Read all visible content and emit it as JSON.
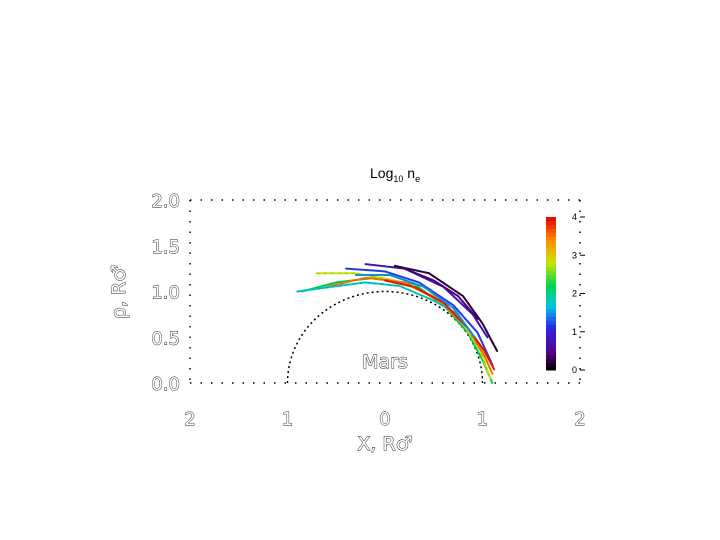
{
  "title": {
    "main": "Log",
    "sub": "10",
    "var": "n",
    "var_sub": "e"
  },
  "chart_data": {
    "type": "line",
    "xlabel": "X, R♂",
    "ylabel": "ρ, R♂",
    "xlim": [
      -2,
      2
    ],
    "ylim": [
      0,
      2
    ],
    "x_ticks": [
      "2",
      "1",
      "0",
      "1",
      "2"
    ],
    "y_ticks": [
      "0.0",
      "0.5",
      "1.0",
      "1.5",
      "2.0"
    ],
    "planet_label": "Mars",
    "planet_radius": 1.0,
    "colorbar": {
      "range": [
        0,
        4
      ],
      "ticks": [
        "0",
        "1",
        "2",
        "3",
        "4"
      ],
      "colormap": "rainbow"
    },
    "series": [
      {
        "x": [
          -0.85,
          -0.5,
          -0.1,
          0.3,
          0.6,
          0.85,
          1.0,
          1.1
        ],
        "y": [
          1.0,
          1.1,
          1.15,
          1.08,
          0.85,
          0.55,
          0.25,
          0.0
        ],
        "level": 2.2
      },
      {
        "x": [
          -0.7,
          -0.3,
          0.1,
          0.5,
          0.8,
          0.98,
          1.08
        ],
        "y": [
          1.2,
          1.2,
          1.12,
          0.95,
          0.65,
          0.35,
          0.05
        ],
        "level": 2.8
      },
      {
        "x": [
          -0.6,
          -0.2,
          0.2,
          0.55,
          0.85,
          1.02,
          1.1
        ],
        "y": [
          1.05,
          1.15,
          1.1,
          0.9,
          0.6,
          0.3,
          0.1
        ],
        "level": 3.5
      },
      {
        "x": [
          -0.4,
          0.0,
          0.35,
          0.7,
          0.95,
          1.1
        ],
        "y": [
          1.25,
          1.22,
          1.1,
          0.85,
          0.55,
          0.2
        ],
        "level": 1.2
      },
      {
        "x": [
          -0.2,
          0.2,
          0.6,
          0.9,
          1.05
        ],
        "y": [
          1.3,
          1.25,
          1.05,
          0.75,
          0.5
        ],
        "level": 0.8
      },
      {
        "x": [
          0.1,
          0.45,
          0.8,
          1.0,
          1.15
        ],
        "y": [
          1.28,
          1.2,
          0.95,
          0.65,
          0.35
        ],
        "level": 0.2
      },
      {
        "x": [
          -0.9,
          -0.55,
          -0.2,
          0.15,
          0.5,
          0.75
        ],
        "y": [
          1.0,
          1.05,
          1.1,
          1.06,
          0.9,
          0.75
        ],
        "level": 1.8
      },
      {
        "x": [
          0.0,
          0.3,
          0.6,
          0.85,
          1.02,
          1.12
        ],
        "y": [
          1.12,
          1.05,
          0.88,
          0.6,
          0.35,
          0.15
        ],
        "level": 3.9
      },
      {
        "x": [
          -0.3,
          0.05,
          0.4,
          0.7,
          0.92
        ],
        "y": [
          1.18,
          1.18,
          1.05,
          0.82,
          0.5
        ],
        "level": 1.5
      },
      {
        "x": [
          0.2,
          0.5,
          0.75,
          0.95
        ],
        "y": [
          1.25,
          1.12,
          0.95,
          0.7
        ],
        "level": 0.4
      }
    ]
  }
}
